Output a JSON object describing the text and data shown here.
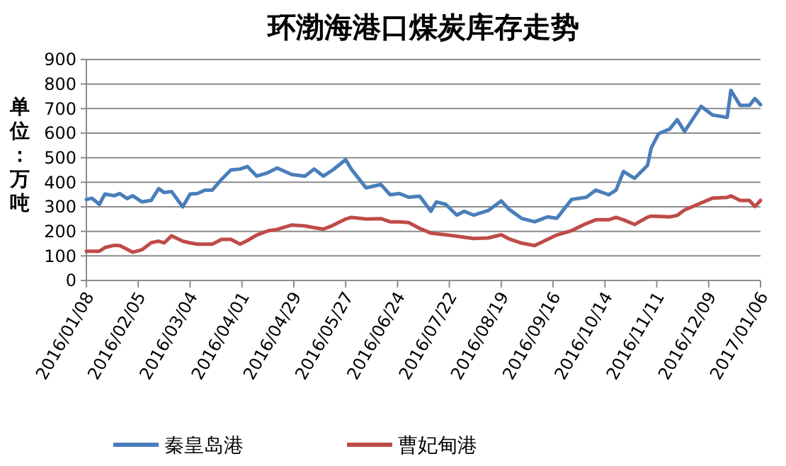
{
  "chart_data": {
    "type": "line",
    "title": "环渤海港口煤炭库存走势",
    "ylabel": "单位：万吨",
    "x": [
      "2016-01-08",
      "2016-01-11",
      "2016-01-15",
      "2016-01-18",
      "2016-01-23",
      "2016-01-26",
      "2016-01-30",
      "2016-02-02",
      "2016-02-07",
      "2016-02-12",
      "2016-02-16",
      "2016-02-19",
      "2016-02-23",
      "2016-02-29",
      "2016-03-04",
      "2016-03-08",
      "2016-03-12",
      "2016-03-16",
      "2016-03-21",
      "2016-03-26",
      "2016-03-31",
      "2016-04-04",
      "2016-04-09",
      "2016-04-15",
      "2016-04-20",
      "2016-04-28",
      "2016-05-05",
      "2016-05-10",
      "2016-05-15",
      "2016-05-20",
      "2016-05-27",
      "2016-05-30",
      "2016-06-07",
      "2016-06-15",
      "2016-06-20",
      "2016-06-25",
      "2016-06-30",
      "2016-07-06",
      "2016-07-12",
      "2016-07-15",
      "2016-07-20",
      "2016-07-26",
      "2016-07-30",
      "2016-08-04",
      "2016-08-12",
      "2016-08-19",
      "2016-08-23",
      "2016-08-30",
      "2016-09-06",
      "2016-09-13",
      "2016-09-18",
      "2016-09-26",
      "2016-10-04",
      "2016-10-09",
      "2016-10-16",
      "2016-10-20",
      "2016-10-24",
      "2016-10-30",
      "2016-11-06",
      "2016-11-08",
      "2016-11-12",
      "2016-11-18",
      "2016-11-22",
      "2016-11-26",
      "2016-12-05",
      "2016-12-11",
      "2016-12-19",
      "2016-12-21",
      "2016-12-26",
      "2016-12-31",
      "2017-01-03",
      "2017-01-06"
    ],
    "series": [
      {
        "name": "秦皇岛港",
        "color": "#4a7ebb",
        "values": [
          330,
          335,
          310,
          352,
          345,
          354,
          333,
          345,
          320,
          326,
          374,
          358,
          362,
          300,
          352,
          354,
          368,
          368,
          412,
          450,
          454,
          464,
          425,
          439,
          458,
          431,
          425,
          454,
          425,
          450,
          492,
          454,
          377,
          391,
          349,
          354,
          339,
          343,
          282,
          320,
          310,
          266,
          282,
          266,
          285,
          324,
          291,
          253,
          239,
          259,
          253,
          330,
          339,
          368,
          349,
          368,
          444,
          416,
          469,
          540,
          598,
          617,
          655,
          607,
          709,
          674,
          664,
          774,
          713,
          713,
          741,
          716
        ]
      },
      {
        "name": "曹妃甸港",
        "color": "#be4b48",
        "values": [
          119,
          119,
          119,
          134,
          143,
          142,
          127,
          115,
          125,
          154,
          160,
          153,
          182,
          160,
          153,
          148,
          148,
          148,
          167,
          167,
          148,
          163,
          185,
          202,
          208,
          226,
          222,
          215,
          209,
          224,
          250,
          257,
          250,
          252,
          239,
          239,
          236,
          212,
          193,
          190,
          186,
          180,
          176,
          171,
          173,
          186,
          170,
          152,
          142,
          167,
          185,
          203,
          232,
          247,
          247,
          257,
          247,
          228,
          258,
          262,
          261,
          259,
          265,
          287,
          316,
          335,
          338,
          345,
          326,
          326,
          301,
          326
        ]
      }
    ],
    "xlim": [
      "2016-01-08",
      "2017-01-06"
    ],
    "xticks": [
      {
        "value": "2016-01-08",
        "label": "2016/01/08"
      },
      {
        "value": "2016-02-05",
        "label": "2016/02/05"
      },
      {
        "value": "2016-03-04",
        "label": "2016/03/04"
      },
      {
        "value": "2016-04-01",
        "label": "2016/04/01"
      },
      {
        "value": "2016-04-29",
        "label": "2016/04/29"
      },
      {
        "value": "2016-05-27",
        "label": "2016/05/27"
      },
      {
        "value": "2016-06-24",
        "label": "2016/06/24"
      },
      {
        "value": "2016-07-22",
        "label": "2016/07/22"
      },
      {
        "value": "2016-08-19",
        "label": "2016/08/19"
      },
      {
        "value": "2016-09-16",
        "label": "2016/09/16"
      },
      {
        "value": "2016-10-14",
        "label": "2016/10/14"
      },
      {
        "value": "2016-11-11",
        "label": "2016/11/11"
      },
      {
        "value": "2016-12-09",
        "label": "2016/12/09"
      },
      {
        "value": "2017-01-06",
        "label": "2017/01/06"
      }
    ],
    "ylim": [
      0,
      900
    ],
    "yticks": [
      0,
      100,
      200,
      300,
      400,
      500,
      600,
      700,
      800,
      900
    ],
    "grid": "y",
    "legend": "bottom",
    "marker": "none",
    "line_style": "solid"
  }
}
